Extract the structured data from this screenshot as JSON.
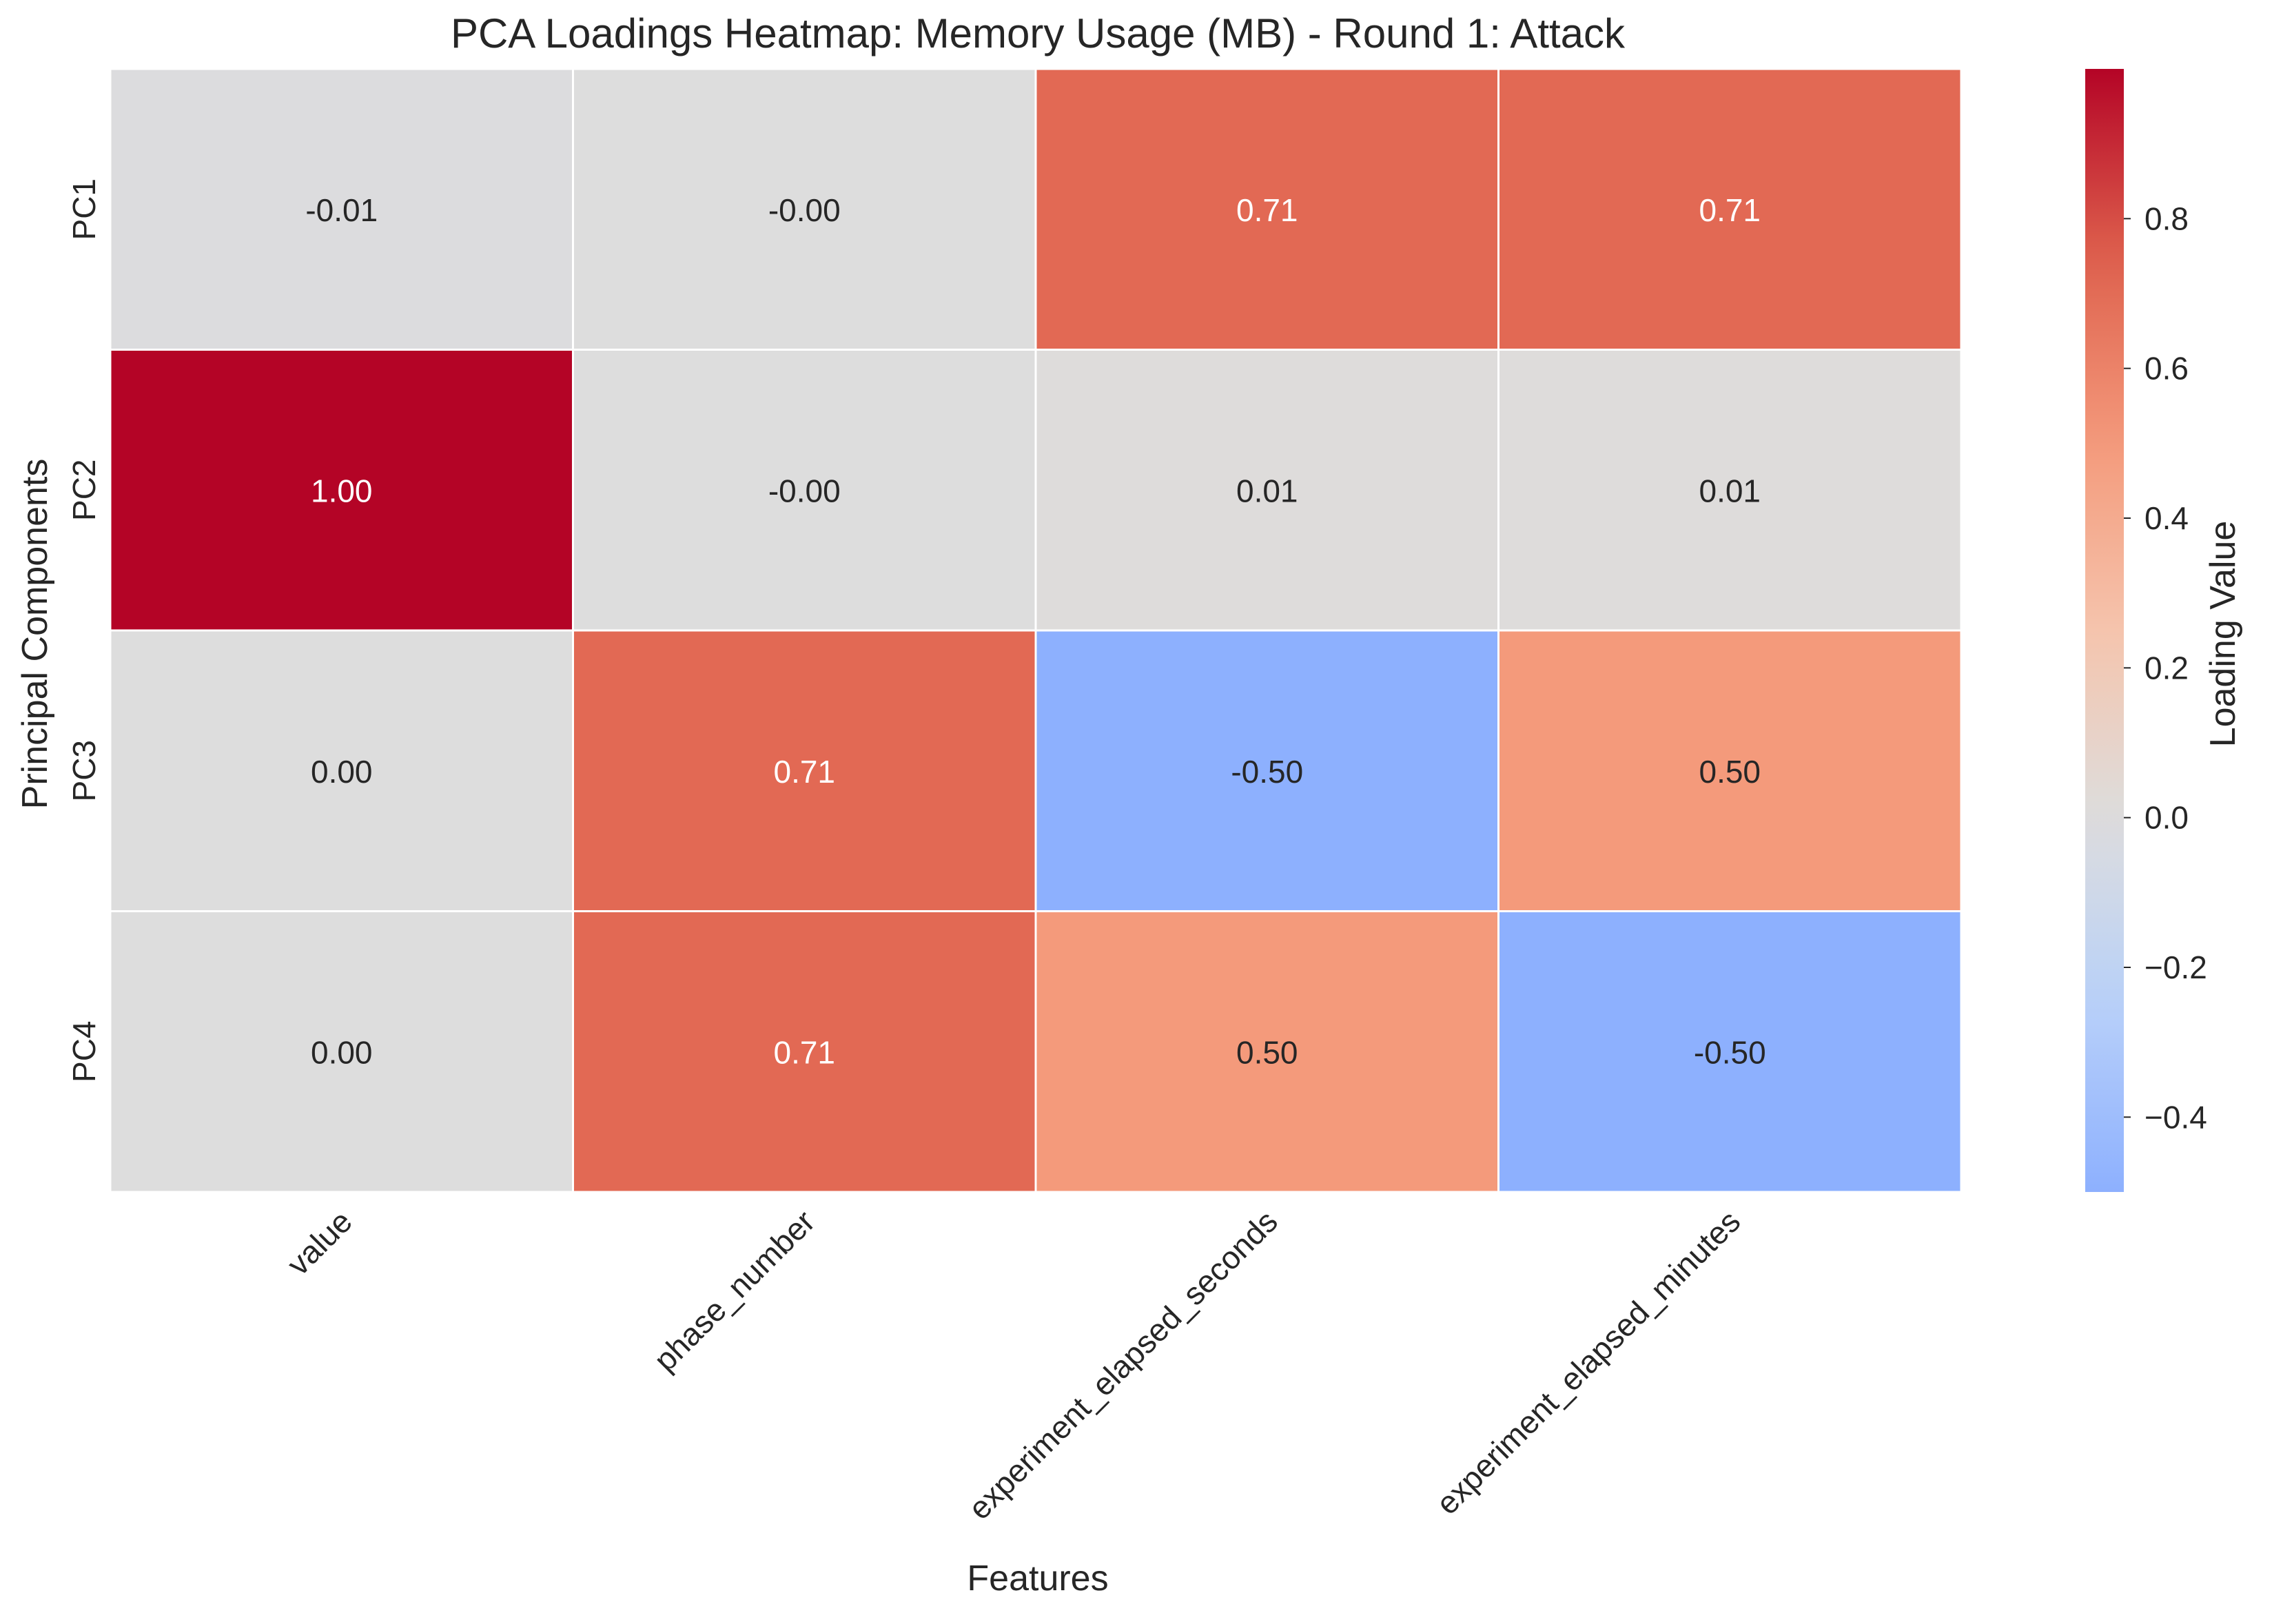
{
  "chart_data": {
    "type": "heatmap",
    "title": "PCA Loadings Heatmap: Memory Usage (MB) - Round 1: Attack",
    "xlabel": "Features",
    "ylabel": "Principal Components",
    "x_categories": [
      "value",
      "phase_number",
      "experiment_elapsed_seconds",
      "experiment_elapsed_minutes"
    ],
    "y_categories": [
      "PC1",
      "PC2",
      "PC3",
      "PC4"
    ],
    "values": [
      [
        -0.01,
        -0.0,
        0.71,
        0.71
      ],
      [
        1.0,
        -0.0,
        0.01,
        0.01
      ],
      [
        0.0,
        0.71,
        -0.5,
        0.5
      ],
      [
        0.0,
        0.71,
        0.5,
        -0.5
      ]
    ],
    "annotations": [
      [
        "-0.01",
        "-0.00",
        "0.71",
        "0.71"
      ],
      [
        "1.00",
        "-0.00",
        "0.01",
        "0.01"
      ],
      [
        "0.00",
        "0.71",
        "-0.50",
        "0.50"
      ],
      [
        "0.00",
        "0.71",
        "0.50",
        "-0.50"
      ]
    ],
    "colormap": "coolwarm",
    "center": 0.0,
    "vmin": -0.5,
    "vmax": 1.0,
    "grid": false,
    "colorbar": {
      "label": "Loading Value",
      "ticks": [
        -0.4,
        -0.2,
        0.0,
        0.2,
        0.4,
        0.6,
        0.8
      ],
      "tick_labels": [
        "−0.4",
        "−0.2",
        "0.0",
        "0.2",
        "0.4",
        "0.6",
        "0.8"
      ]
    }
  }
}
